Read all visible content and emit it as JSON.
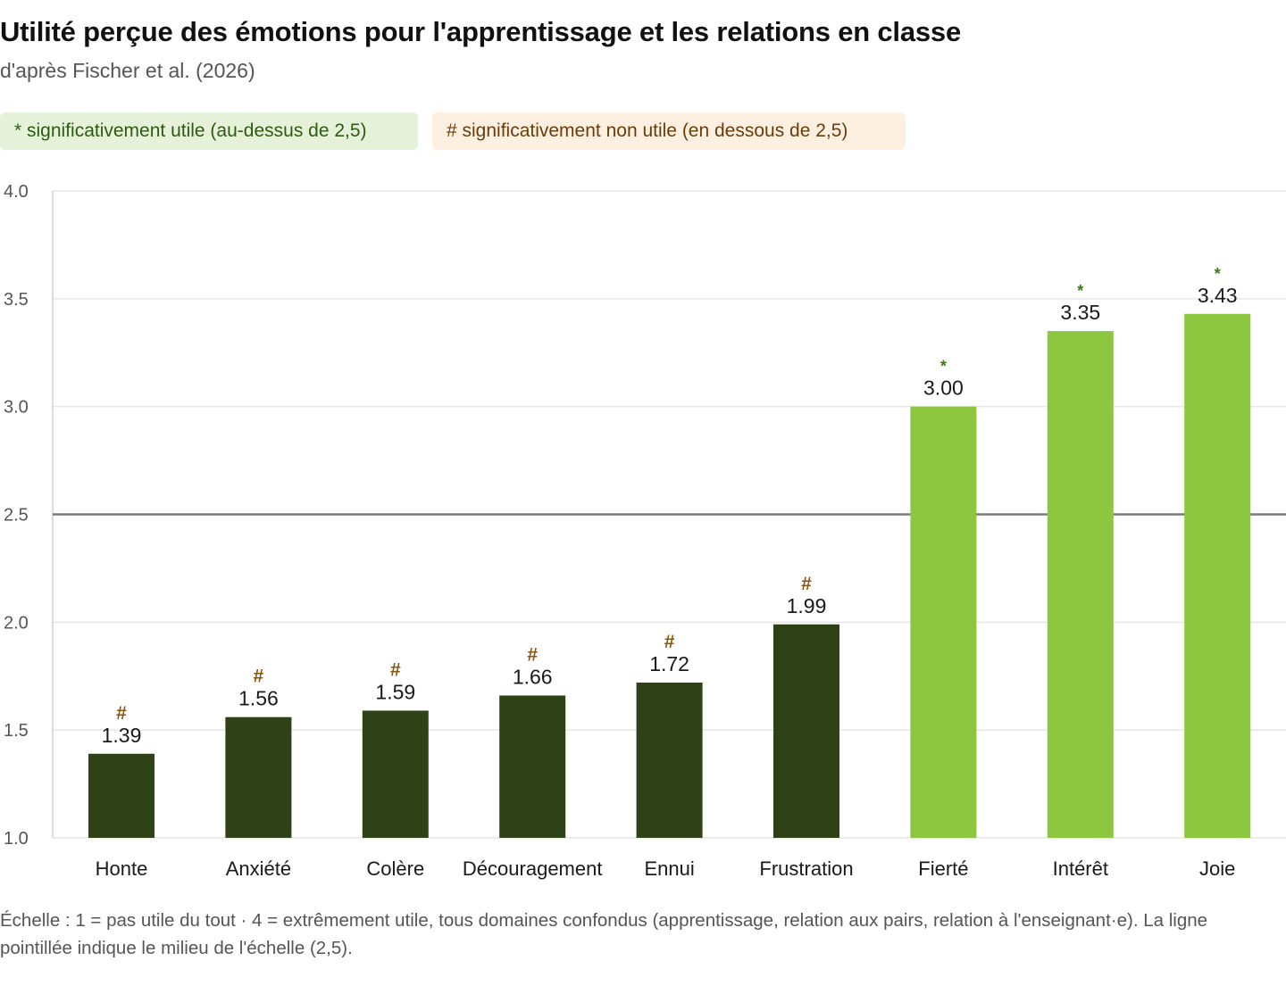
{
  "title": "Utilité perçue des émotions pour l'apprentissage et les relations en classe",
  "subtitle": "d'après Fischer et al. (2026)",
  "legend": {
    "significant": "* significativement utile (au-dessus de 2,5)",
    "non_significant": "# significativement non utile (en dessous de 2,5)"
  },
  "colors": {
    "dark_bar": "#2f4117",
    "light_bar": "#8dc63f",
    "star_mark": "#3d7a14",
    "hash_mark": "#8a5412",
    "reference_line": "#7a7a7a",
    "grid": "#e6e6e6"
  },
  "chart_data": {
    "type": "bar",
    "title": "Utilité perçue des émotions pour l'apprentissage et les relations en classe",
    "xlabel": "",
    "ylabel": "",
    "ylim": [
      1.0,
      4.0
    ],
    "yticks": [
      "1.0",
      "1.5",
      "2.0",
      "2.5",
      "3.0",
      "3.5",
      "4.0"
    ],
    "reference_line": 2.5,
    "grid": true,
    "categories": [
      "Honte",
      "Anxiété",
      "Colère",
      "Découragement",
      "Ennui",
      "Frustration",
      "Fierté",
      "Intérêt",
      "Joie"
    ],
    "values": [
      1.39,
      1.56,
      1.59,
      1.66,
      1.72,
      1.99,
      3.0,
      3.35,
      3.43
    ],
    "value_labels": [
      "1.39",
      "1.56",
      "1.59",
      "1.66",
      "1.72",
      "1.99",
      "3.00",
      "3.35",
      "3.43"
    ],
    "markers": [
      "#",
      "#",
      "#",
      "#",
      "#",
      "#",
      "*",
      "*",
      "*"
    ]
  },
  "footnote": "Échelle : 1 = pas utile du tout · 4 = extrêmement utile, tous domaines confondus (apprentissage, relation aux pairs, relation à l'enseignant·e). La ligne pointillée indique le milieu de l'échelle (2,5)."
}
